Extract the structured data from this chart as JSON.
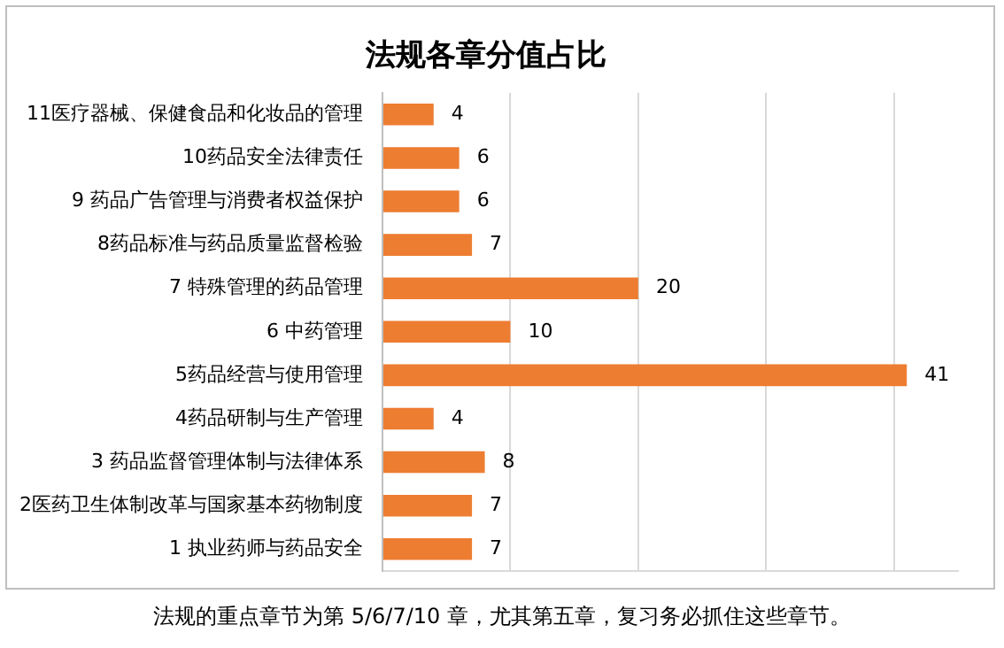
{
  "chart_data": {
    "type": "bar",
    "orientation": "horizontal",
    "title": "法规各章分值占比",
    "categories": [
      "11医疗器械、保健食品和化妆品的管理",
      "10药品安全法律责任",
      "9 药品广告管理与消费者权益保护",
      "8药品标准与药品质量监督检验",
      "7 特殊管理的药品管理",
      "6 中药管理",
      "5药品经营与使用管理",
      "4药品研制与生产管理",
      "3 药品监督管理体制与法律体系",
      "2医药卫生体制改革与国家基本药物制度",
      "1 执业药师与药品安全"
    ],
    "values": [
      4,
      6,
      6,
      7,
      20,
      10,
      41,
      4,
      8,
      7,
      7
    ],
    "color": "#ed7d31",
    "xlim": [
      0,
      45
    ],
    "xticks": [
      {
        "value": 0,
        "label": null
      },
      {
        "value": 10,
        "label": null
      },
      {
        "value": 20,
        "label": null
      },
      {
        "value": 30,
        "label": null
      },
      {
        "value": 40,
        "label": null
      }
    ],
    "tick_labels": "y",
    "grid": "x",
    "data_labels": true,
    "annotations": [
      "法规的重点章节为第 5/6/7/10 章，尤其第五章，复习务必抓住这些章节。"
    ]
  }
}
